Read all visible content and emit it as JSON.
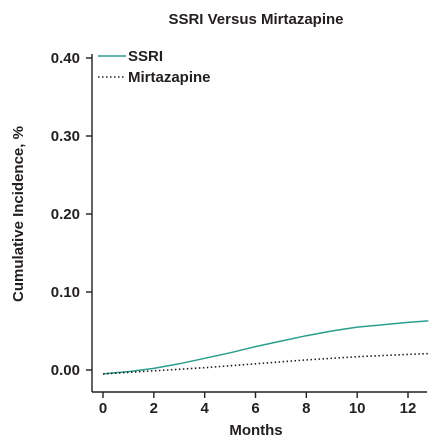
{
  "chart_data": {
    "type": "line",
    "title": "SSRI Versus Mirtazapine",
    "xlabel": "Months",
    "ylabel": "Cumulative Incidence, %",
    "xlim": [
      0,
      12.8
    ],
    "ylim": [
      0,
      0.4
    ],
    "x_ticks": [
      0,
      2,
      4,
      6,
      8,
      10,
      12
    ],
    "x_tick_labels": [
      "0",
      "2",
      "4",
      "6",
      "8",
      "10",
      "12"
    ],
    "y_ticks": [
      0,
      0.1,
      0.2,
      0.3,
      0.4
    ],
    "y_tick_labels": [
      "0.00",
      "0.10",
      "0.20",
      "0.30",
      "0.40"
    ],
    "grid": false,
    "legend": "top-left",
    "series": [
      {
        "name": "SSRI",
        "color": "#2a9d8f",
        "style": "solid",
        "x": [
          0,
          1,
          2,
          3,
          4,
          5,
          6,
          7,
          8,
          9,
          10,
          11,
          12,
          12.8
        ],
        "y": [
          -0.005,
          -0.002,
          0.002,
          0.008,
          0.015,
          0.022,
          0.03,
          0.037,
          0.044,
          0.05,
          0.055,
          0.058,
          0.061,
          0.063
        ]
      },
      {
        "name": "Mirtazapine",
        "color": "#231f20",
        "style": "dotted",
        "x": [
          0,
          2,
          4,
          6,
          8,
          10,
          12,
          12.8
        ],
        "y": [
          -0.005,
          -0.001,
          0.003,
          0.008,
          0.013,
          0.017,
          0.02,
          0.021
        ]
      }
    ]
  }
}
